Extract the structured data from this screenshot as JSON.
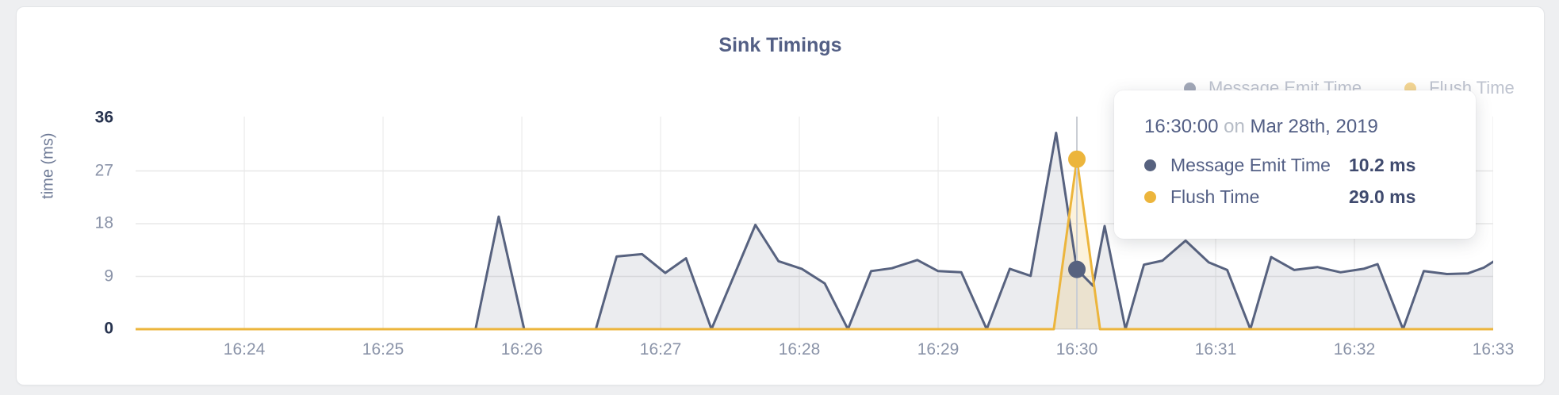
{
  "title": "Sink Timings",
  "y_axis": {
    "label": "time (ms)",
    "ticks": [
      "36",
      "27",
      "18",
      "9",
      "0"
    ]
  },
  "x_axis": {
    "ticks": [
      "16:24",
      "16:25",
      "16:26",
      "16:27",
      "16:28",
      "16:29",
      "16:30",
      "16:31",
      "16:32",
      "16:33"
    ]
  },
  "legend": {
    "items": [
      {
        "label": "Message Emit Time"
      },
      {
        "label": "Flush Time"
      }
    ]
  },
  "tooltip": {
    "time": "16:30:00",
    "joiner": "on",
    "date": "Mar 28th, 2019",
    "rows": [
      {
        "label": "Message Emit Time",
        "value": "10.2 ms"
      },
      {
        "label": "Flush Time",
        "value": "29.0 ms"
      }
    ]
  },
  "colors": {
    "series1": "#57627f",
    "series1_fill": "rgba(87,98,127,0.12)",
    "series2": "#ecb53c",
    "series2_fill": "rgba(236,181,60,0.18)",
    "grid": "#e8e8e8",
    "vgrid": "#efefef",
    "axis_line": "#e2e2e2",
    "hover_line": "#c9cdd4",
    "title_text": "#535f85"
  },
  "chart_data": {
    "type": "area",
    "title": "Sink Timings",
    "xlabel": "",
    "ylabel": "time (ms)",
    "ylim": [
      0,
      36
    ],
    "y_gridlines": [
      9,
      18,
      27
    ],
    "x_unit": "seconds since 16:23:00 on Mar 28th, 2019",
    "x_range": [
      13,
      600
    ],
    "x_ticks": [
      {
        "t": 60,
        "label": "16:24"
      },
      {
        "t": 120,
        "label": "16:25"
      },
      {
        "t": 180,
        "label": "16:26"
      },
      {
        "t": 240,
        "label": "16:27"
      },
      {
        "t": 300,
        "label": "16:28"
      },
      {
        "t": 360,
        "label": "16:29"
      },
      {
        "t": 420,
        "label": "16:30"
      },
      {
        "t": 480,
        "label": "16:31"
      },
      {
        "t": 540,
        "label": "16:32"
      },
      {
        "t": 600,
        "label": "16:33"
      }
    ],
    "y_ticks": [
      36,
      27,
      18,
      9,
      0
    ],
    "series": [
      {
        "name": "Message Emit Time",
        "points": [
          [
            13,
            0
          ],
          [
            160,
            0
          ],
          [
            170,
            19.2
          ],
          [
            181,
            0
          ],
          [
            212,
            0
          ],
          [
            221,
            12.4
          ],
          [
            232,
            12.8
          ],
          [
            242,
            9.6
          ],
          [
            251,
            12.1
          ],
          [
            262,
            0
          ],
          [
            281,
            17.8
          ],
          [
            291,
            11.6
          ],
          [
            301,
            10.3
          ],
          [
            311,
            7.8
          ],
          [
            321,
            0
          ],
          [
            331,
            9.9
          ],
          [
            340,
            10.4
          ],
          [
            351,
            11.8
          ],
          [
            360,
            9.9
          ],
          [
            370,
            9.7
          ],
          [
            381,
            0
          ],
          [
            391,
            10.3
          ],
          [
            400,
            9.1
          ],
          [
            411,
            33.5
          ],
          [
            420,
            10.2
          ],
          [
            427,
            7.4
          ],
          [
            432,
            17.6
          ],
          [
            441,
            0
          ],
          [
            449,
            11.0
          ],
          [
            457,
            11.7
          ],
          [
            467,
            15.1
          ],
          [
            477,
            11.4
          ],
          [
            485,
            10.1
          ],
          [
            495,
            0
          ],
          [
            504,
            12.3
          ],
          [
            514,
            10.1
          ],
          [
            524,
            10.6
          ],
          [
            534,
            9.7
          ],
          [
            544,
            10.3
          ],
          [
            550,
            11.1
          ],
          [
            561,
            0
          ],
          [
            570,
            9.9
          ],
          [
            580,
            9.4
          ],
          [
            589,
            9.5
          ],
          [
            596,
            10.5
          ],
          [
            600,
            11.5
          ]
        ]
      },
      {
        "name": "Flush Time",
        "points": [
          [
            13,
            0
          ],
          [
            410,
            0
          ],
          [
            420,
            29.0
          ],
          [
            430,
            0
          ],
          [
            600,
            0
          ]
        ]
      }
    ],
    "hover": {
      "t": 420,
      "time": "16:30:00",
      "date": "Mar 28th, 2019",
      "values": [
        {
          "series": "Message Emit Time",
          "ms": 10.2
        },
        {
          "series": "Flush Time",
          "ms": 29.0
        }
      ]
    },
    "legend_position": "top-right",
    "grid": true
  }
}
